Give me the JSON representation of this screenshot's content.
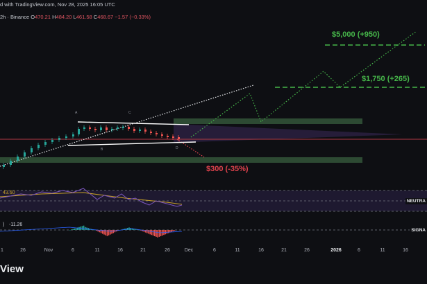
{
  "header": {
    "published": "d with TradingView.com, Nov 28, 2025 16:05 UTC",
    "symbol_prefix": "2h · Binance",
    "o_key": "O",
    "o_val": "470.21",
    "h_key": "H",
    "h_val": "484.20",
    "l_key": "L",
    "l_val": "461.58",
    "c_key": "C",
    "c_val": "468.67",
    "change": "−1.57 (−0.33%)"
  },
  "annotations": {
    "target_high": "$5,000 (+950)",
    "target_mid": "$1,750 (+265)",
    "target_low": "$300 (-35%)",
    "pattern_a": "A",
    "pattern_b": "B",
    "pattern_c": "C",
    "pattern_d": "D"
  },
  "rsi": {
    "value": "43.60",
    "level_label": "NEUTRA"
  },
  "macd": {
    "value": "-11.26",
    "level_label": "SIGNA",
    "prefix": ")"
  },
  "x_axis": {
    "ticks": [
      "26",
      "Nov",
      "6",
      "11",
      "16",
      "21",
      "26",
      "Dec",
      "6",
      "11",
      "16",
      "21",
      "26",
      "2026",
      "6",
      "11",
      "16"
    ],
    "first": "1"
  },
  "footer": {
    "brand": "View"
  },
  "colors": {
    "background": "#0e0f13",
    "up": "#26a69a",
    "down": "#ef5350",
    "target_green": "#46b74a",
    "target_red": "#e0434d",
    "zone_green": "#2e4a2e",
    "rsi_line": "#7e57c2",
    "rsi_ma": "#c9a227"
  }
}
